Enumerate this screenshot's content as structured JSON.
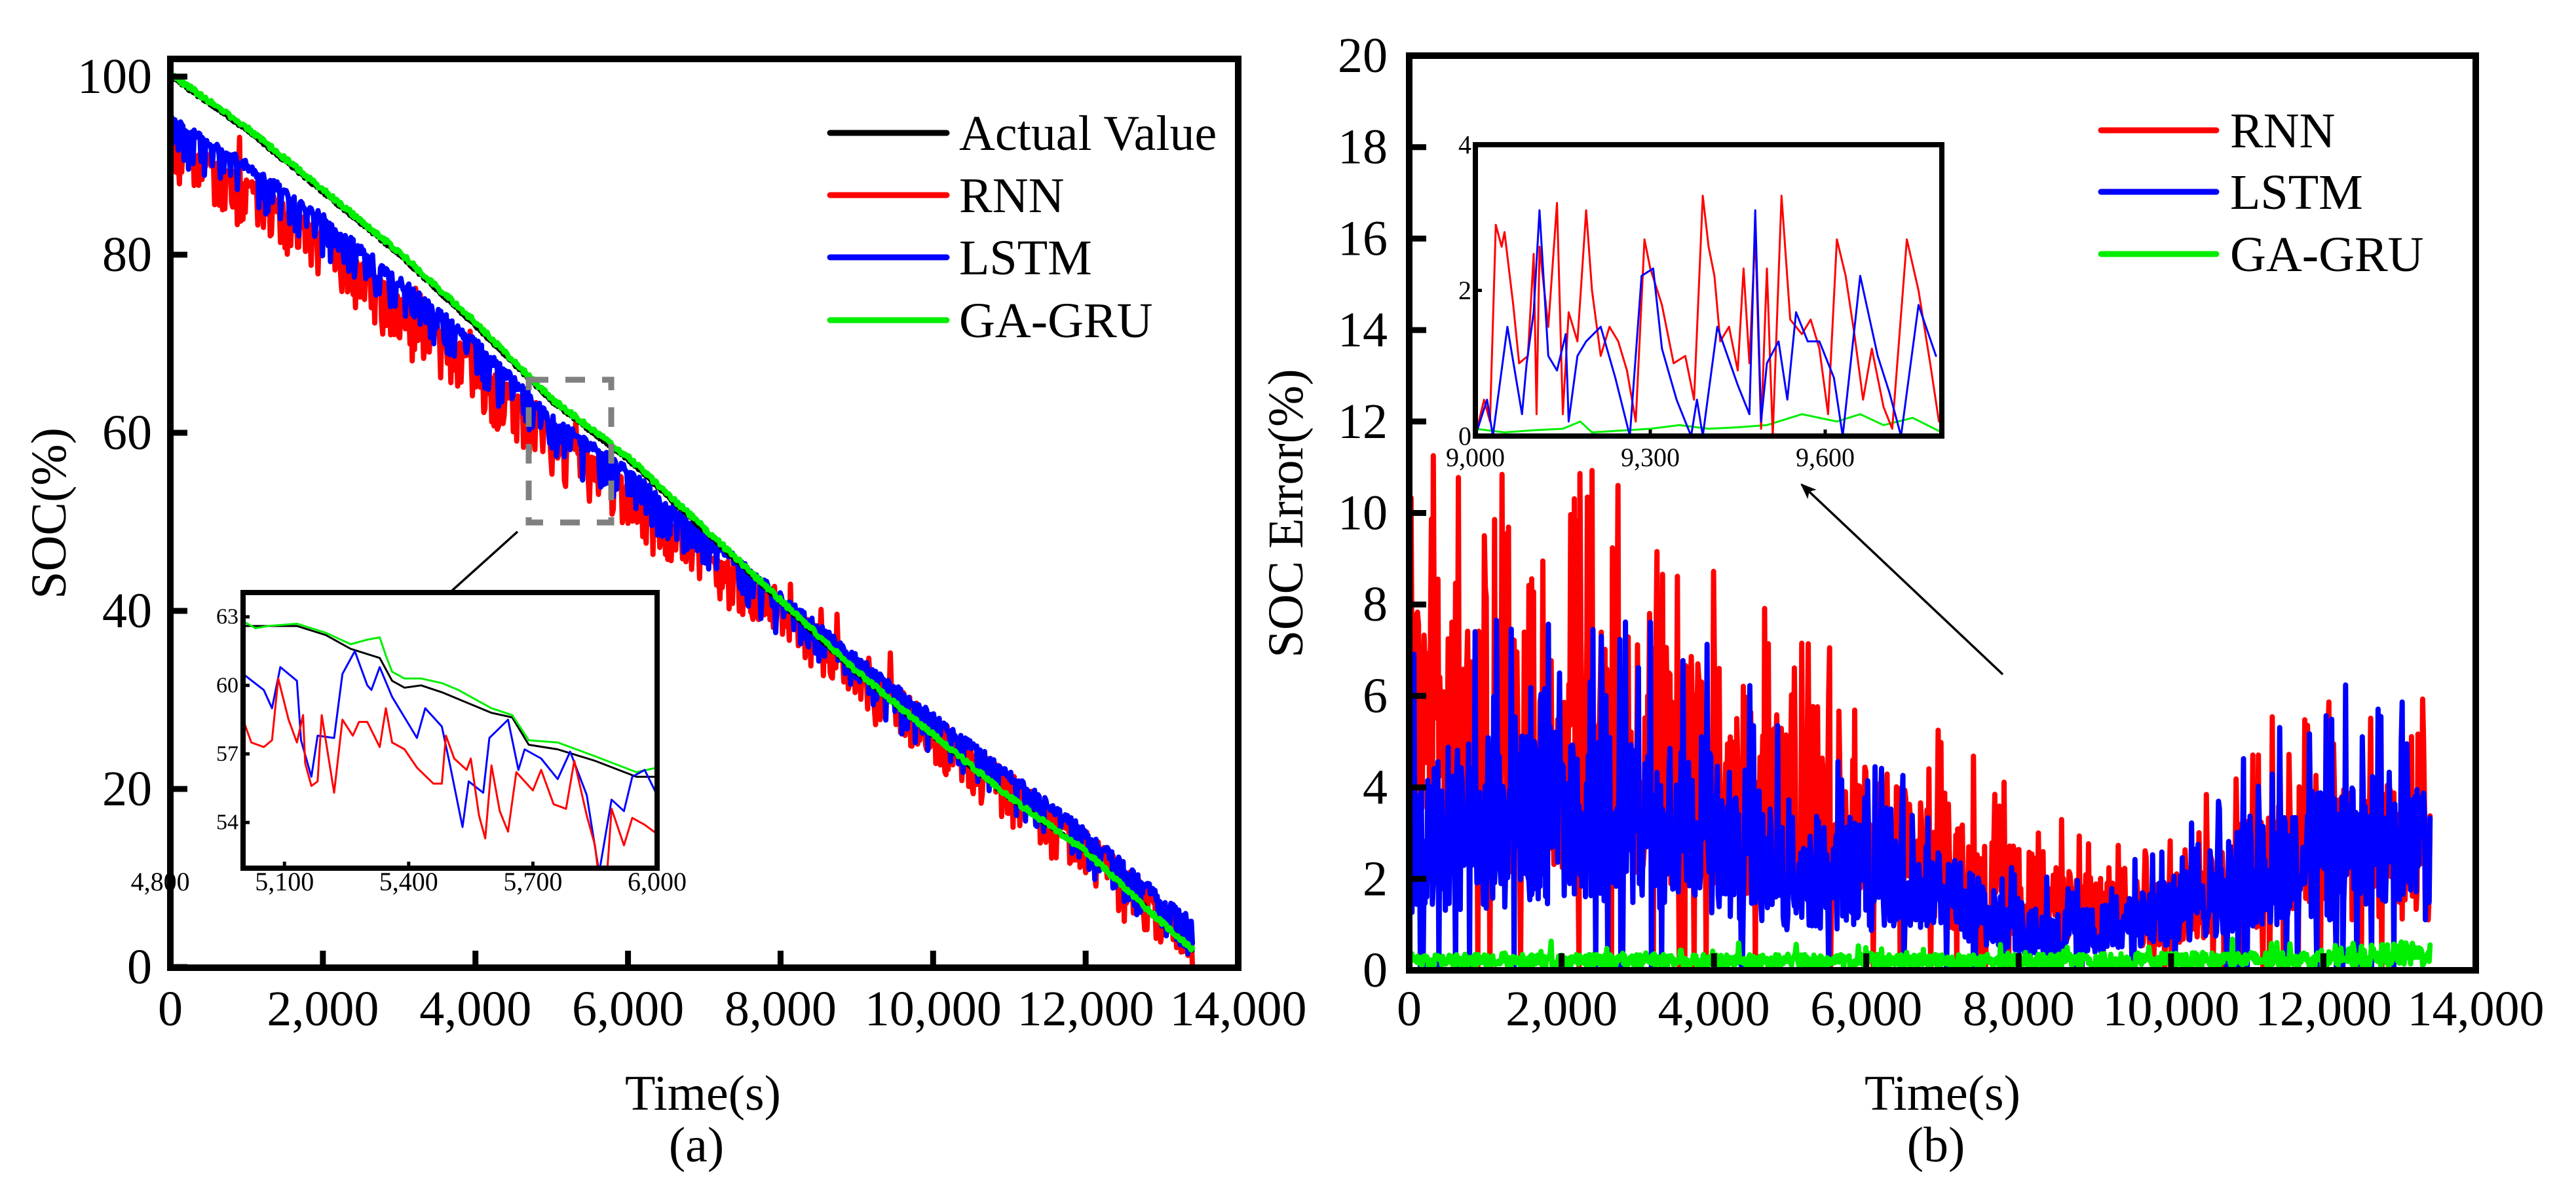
{
  "colors": {
    "actual": "#000000",
    "rnn": "#ff0000",
    "lstm": "#0000ff",
    "gagru": "#00ee00",
    "zoom_box": "#808080"
  },
  "chart_data": [
    {
      "id": "a",
      "type": "line",
      "caption": "(a)",
      "xlabel": "Time(s)",
      "ylabel": "SOC(%)",
      "xlim": [
        0,
        14000
      ],
      "ylim": [
        0,
        102
      ],
      "xticks": [
        {
          "v": 0,
          "t": "0"
        },
        {
          "v": 2000,
          "t": "2,000"
        },
        {
          "v": 4000,
          "t": "4,000"
        },
        {
          "v": 6000,
          "t": "6,000"
        },
        {
          "v": 8000,
          "t": "8,000"
        },
        {
          "v": 10000,
          "t": "10,000"
        },
        {
          "v": 12000,
          "t": "12,000"
        },
        {
          "v": 14000,
          "t": "14,000"
        }
      ],
      "yticks": [
        {
          "v": 0,
          "t": "0"
        },
        {
          "v": 20,
          "t": "20"
        },
        {
          "v": 40,
          "t": "40"
        },
        {
          "v": 60,
          "t": "60"
        },
        {
          "v": 80,
          "t": "80"
        },
        {
          "v": 100,
          "t": "100"
        }
      ],
      "legend": {
        "placement": "top-right",
        "entries": [
          "Actual Value",
          "RNN",
          "LSTM",
          "GA-GRU"
        ]
      },
      "series": [
        {
          "name": "Actual Value",
          "key": "actual",
          "x": [
            0,
            1000,
            2000,
            3000,
            4000,
            5000,
            6000,
            7000,
            8000,
            9000,
            10000,
            11000,
            12000,
            13000,
            13400
          ],
          "y": [
            100,
            94,
            87,
            80,
            72,
            63.5,
            57,
            49,
            41,
            33,
            26,
            19,
            13,
            5,
            2
          ]
        },
        {
          "name": "RNN",
          "key": "rnn",
          "x": [
            0,
            1000,
            2000,
            3000,
            4000,
            5000,
            6000,
            7000,
            8000,
            9000,
            10000,
            11000,
            12000,
            13000,
            13400
          ],
          "y": [
            93,
            88,
            82,
            75,
            68,
            60,
            54,
            47,
            41,
            34,
            27.5,
            21,
            14.5,
            7,
            4
          ]
        },
        {
          "name": "LSTM",
          "key": "lstm",
          "x": [
            0,
            1000,
            2000,
            3000,
            4000,
            5000,
            6000,
            7000,
            8000,
            9000,
            10000,
            11000,
            12000,
            13000,
            13400
          ],
          "y": [
            95,
            90,
            84,
            77,
            70,
            61.5,
            55.5,
            48.5,
            41.5,
            34.5,
            28,
            21.5,
            15,
            7.5,
            5
          ]
        },
        {
          "name": "GA-GRU",
          "key": "gagru",
          "x": [
            0,
            1000,
            2000,
            3000,
            4000,
            5000,
            6000,
            7000,
            8000,
            9000,
            10000,
            11000,
            12000,
            13000,
            13400
          ],
          "y": [
            100.3,
            94.3,
            87.3,
            80.3,
            72.4,
            63.8,
            57.3,
            49.3,
            41.2,
            33.2,
            26.1,
            19.1,
            13,
            5,
            2
          ]
        }
      ],
      "zoom_region": {
        "xlim": [
          4700,
          5800
        ],
        "ylim": [
          50,
          66
        ]
      },
      "inset": {
        "xlim": [
          5000,
          6000
        ],
        "ylim": [
          52,
          64
        ],
        "xticks": [
          {
            "v": 4800,
            "t": "4,800"
          },
          {
            "v": 5100,
            "t": "5,100"
          },
          {
            "v": 5400,
            "t": "5,400"
          },
          {
            "v": 5700,
            "t": "5,700"
          },
          {
            "v": 6000,
            "t": "6,000"
          }
        ],
        "yticks": [
          {
            "v": 54,
            "t": "54"
          },
          {
            "v": 57,
            "t": "57"
          },
          {
            "v": 60,
            "t": "60"
          },
          {
            "v": 63,
            "t": "63"
          }
        ],
        "series": [
          {
            "key": "actual",
            "x": [
              5000,
              5130,
              5200,
              5260,
              5330,
              5360,
              5390,
              5430,
              5480,
              5600,
              5650,
              5690,
              5760,
              5850,
              5950,
              6000
            ],
            "y": [
              62.6,
              62.6,
              62.2,
              61.6,
              61.2,
              60.2,
              59.9,
              60.0,
              59.7,
              58.8,
              58.6,
              57.4,
              57.2,
              56.7,
              56.0,
              56.0
            ]
          },
          {
            "key": "gagru",
            "x": [
              5000,
              5030,
              5060,
              5130,
              5200,
              5260,
              5300,
              5330,
              5345,
              5360,
              5390,
              5430,
              5480,
              5520,
              5600,
              5650,
              5690,
              5760,
              5850,
              5950,
              6000
            ],
            "y": [
              62.8,
              62.5,
              62.6,
              62.7,
              62.3,
              61.8,
              62.0,
              62.1,
              61.3,
              60.6,
              60.3,
              60.3,
              60.1,
              59.8,
              59.0,
              58.7,
              57.6,
              57.5,
              56.9,
              56.2,
              56.4
            ]
          },
          {
            "key": "lstm",
            "x": [
              5000,
              5050,
              5070,
              5090,
              5130,
              5140,
              5165,
              5180,
              5220,
              5240,
              5270,
              5300,
              5310,
              5330,
              5360,
              5400,
              5420,
              5440,
              5480,
              5500,
              5530,
              5545,
              5580,
              5595,
              5640,
              5665,
              5680,
              5720,
              5760,
              5790,
              5830,
              5860,
              5890,
              5920,
              5940,
              5970,
              6000
            ],
            "y": [
              60.5,
              59.8,
              59.0,
              60.8,
              60.2,
              57.6,
              56.0,
              57.8,
              57.7,
              60.5,
              61.5,
              60.0,
              59.8,
              60.8,
              59.5,
              58.3,
              57.7,
              59.0,
              58.2,
              56.5,
              53.8,
              55.8,
              55.3,
              57.7,
              58.5,
              56.3,
              57.2,
              56.8,
              55.9,
              57.1,
              55.2,
              51.8,
              55.0,
              54.5,
              56.0,
              56.3,
              55.2
            ]
          },
          {
            "key": "rnn",
            "x": [
              5000,
              5020,
              5050,
              5070,
              5085,
              5110,
              5130,
              5145,
              5150,
              5165,
              5180,
              5190,
              5220,
              5240,
              5265,
              5280,
              5300,
              5330,
              5345,
              5360,
              5390,
              5420,
              5460,
              5480,
              5490,
              5510,
              5540,
              5550,
              5570,
              5585,
              5600,
              5620,
              5640,
              5660,
              5700,
              5720,
              5750,
              5780,
              5800,
              5830,
              5850,
              5860,
              5880,
              5890,
              5920,
              5940,
              5970,
              6000
            ],
            "y": [
              58.5,
              57.5,
              57.3,
              57.6,
              60.3,
              58.5,
              57.5,
              58.7,
              56.6,
              55.6,
              55.8,
              58.7,
              55.3,
              58.5,
              57.8,
              58.4,
              58.4,
              57.3,
              59.0,
              57.5,
              57.2,
              56.4,
              55.7,
              55.7,
              57.8,
              56.8,
              56.3,
              56.8,
              54.3,
              53.3,
              56.5,
              54.5,
              53.6,
              56.2,
              55.4,
              56.3,
              54.8,
              54.6,
              56.7,
              54.3,
              53.0,
              51.5,
              52.0,
              54.6,
              53.0,
              54.2,
              53.9,
              53.5
            ]
          }
        ]
      }
    },
    {
      "id": "b",
      "type": "line",
      "caption": "(b)",
      "xlabel": "Time(s)",
      "ylabel": "SOC Error(%)",
      "xlim": [
        0,
        14000
      ],
      "ylim": [
        0,
        20
      ],
      "xticks": [
        {
          "v": 0,
          "t": "0"
        },
        {
          "v": 2000,
          "t": "2,000"
        },
        {
          "v": 4000,
          "t": "4,000"
        },
        {
          "v": 6000,
          "t": "6,000"
        },
        {
          "v": 8000,
          "t": "8,000"
        },
        {
          "v": 10000,
          "t": "10,000"
        },
        {
          "v": 12000,
          "t": "12,000"
        },
        {
          "v": 14000,
          "t": "14,000"
        }
      ],
      "yticks": [
        {
          "v": 0,
          "t": "0"
        },
        {
          "v": 2,
          "t": "2"
        },
        {
          "v": 4,
          "t": "4"
        },
        {
          "v": 6,
          "t": "6"
        },
        {
          "v": 8,
          "t": "8"
        },
        {
          "v": 10,
          "t": "10"
        },
        {
          "v": 12,
          "t": "12"
        },
        {
          "v": 14,
          "t": "14"
        },
        {
          "v": 16,
          "t": "16"
        },
        {
          "v": 18,
          "t": "18"
        },
        {
          "v": 20,
          "t": "20"
        }
      ],
      "legend": {
        "placement": "top-right",
        "entries": [
          "RNN",
          "LSTM",
          "GA-GRU"
        ]
      },
      "series": [
        {
          "name": "RNN",
          "key": "rnn",
          "x": [
            0,
            1000,
            2000,
            3000,
            4000,
            5000,
            6000,
            7000,
            8000,
            9000,
            10000,
            11000,
            12000,
            13000,
            13400
          ],
          "y": [
            6,
            5.5,
            5.5,
            5.5,
            5,
            4,
            3.5,
            2.5,
            2,
            1.5,
            1.5,
            2.5,
            3,
            3,
            3
          ]
        },
        {
          "name": "LSTM",
          "key": "lstm",
          "x": [
            0,
            1000,
            2000,
            3000,
            4000,
            5000,
            6000,
            7000,
            8000,
            9000,
            10000,
            11000,
            12000,
            13000,
            13400
          ],
          "y": [
            3.5,
            3.8,
            4,
            3.8,
            3.5,
            2.5,
            2.5,
            2,
            1,
            1,
            1.5,
            2.5,
            3,
            3,
            3
          ]
        },
        {
          "name": "GA-GRU",
          "key": "gagru",
          "x": [
            0,
            4000,
            8000,
            12000,
            13000,
            13400
          ],
          "y": [
            0.25,
            0.25,
            0.25,
            0.3,
            0.45,
            0.4
          ]
        }
      ],
      "inset": {
        "xlim": [
          9000,
          9800
        ],
        "ylim": [
          0,
          4
        ],
        "xticks": [
          {
            "v": 9000,
            "t": "9,000"
          },
          {
            "v": 9300,
            "t": "9,300"
          },
          {
            "v": 9600,
            "t": "9,600"
          }
        ],
        "yticks": [
          {
            "v": 0,
            "t": "0"
          },
          {
            "v": 2,
            "t": "2"
          },
          {
            "v": 4,
            "t": "4"
          }
        ],
        "series": [
          {
            "key": "gagru",
            "x": [
              9000,
              9050,
              9100,
              9150,
              9180,
              9200,
              9300,
              9350,
              9400,
              9450,
              9500,
              9560,
              9620,
              9660,
              9700,
              9750,
              9800
            ],
            "y": [
              0.1,
              0.05,
              0.08,
              0.1,
              0.2,
              0.05,
              0.1,
              0.15,
              0.1,
              0.12,
              0.15,
              0.3,
              0.2,
              0.3,
              0.15,
              0.25,
              0.05
            ]
          },
          {
            "key": "rnn",
            "x": [
              9000,
              9015,
              9025,
              9035,
              9045,
              9050,
              9065,
              9075,
              9090,
              9100,
              9105,
              9110,
              9125,
              9140,
              9150,
              9160,
              9175,
              9190,
              9200,
              9215,
              9230,
              9245,
              9260,
              9275,
              9290,
              9300,
              9320,
              9340,
              9360,
              9375,
              9390,
              9400,
              9410,
              9420,
              9435,
              9450,
              9460,
              9470,
              9480,
              9490,
              9500,
              9510,
              9525,
              9540,
              9560,
              9575,
              9590,
              9605,
              9620,
              9635,
              9650,
              9665,
              9680,
              9700,
              9715,
              9740,
              9760,
              9780,
              9795
            ],
            "y": [
              0,
              0.5,
              0.2,
              2.9,
              2.6,
              2.8,
              1.8,
              1.0,
              1.1,
              2.5,
              0.3,
              2.6,
              1.5,
              3.2,
              0.3,
              1.7,
              1.3,
              3.1,
              2.0,
              1.1,
              1.5,
              1.3,
              0.9,
              0.2,
              2.7,
              2.3,
              1.8,
              1.0,
              1.1,
              0.5,
              3.3,
              2.6,
              2.2,
              1.3,
              1.5,
              0.9,
              2.3,
              1.0,
              2.8,
              0.1,
              2.3,
              0,
              3.3,
              1.6,
              1.4,
              1.6,
              1.2,
              0.3,
              2.7,
              2.2,
              1.4,
              0.5,
              1.2,
              0.4,
              0.1,
              2.7,
              2.0,
              1.0,
              0.2
            ]
          },
          {
            "key": "lstm",
            "x": [
              9000,
              9020,
              9030,
              9055,
              9080,
              9088,
              9100,
              9110,
              9125,
              9140,
              9155,
              9160,
              9175,
              9190,
              9215,
              9240,
              9265,
              9285,
              9305,
              9320,
              9345,
              9370,
              9380,
              9390,
              9415,
              9450,
              9470,
              9480,
              9490,
              9500,
              9520,
              9535,
              9550,
              9570,
              9590,
              9615,
              9630,
              9660,
              9690,
              9710,
              9730,
              9760,
              9790
            ],
            "y": [
              0,
              0.5,
              0,
              1.5,
              0.3,
              1.0,
              1.7,
              3.1,
              1.1,
              0.9,
              1.4,
              0.2,
              1.1,
              1.3,
              1.5,
              0.8,
              0,
              2.2,
              2.3,
              1.2,
              0.5,
              0,
              0.5,
              0,
              1.5,
              0.7,
              0.3,
              3.1,
              0.2,
              1.0,
              1.3,
              0.5,
              1.7,
              1.3,
              1.3,
              0.8,
              0,
              2.2,
              1.1,
              0.6,
              0,
              1.8,
              1.1
            ]
          }
        ]
      }
    }
  ]
}
